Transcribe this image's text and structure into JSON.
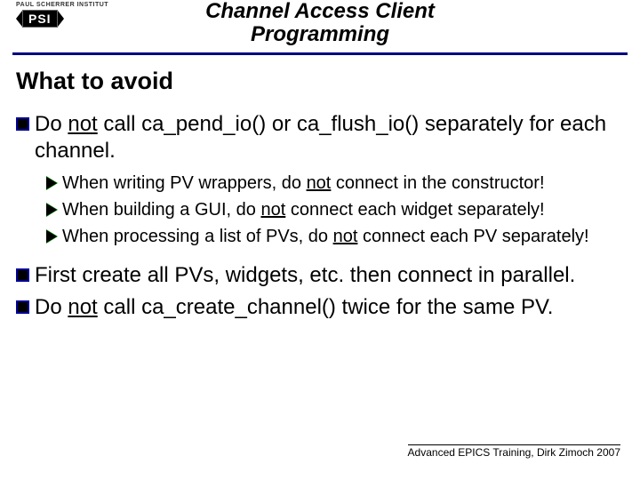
{
  "header": {
    "logo_small_text": "PAUL SCHERRER INSTITUT",
    "logo_text": "PSI",
    "title_line1": "Channel Access Client",
    "title_line2": "Programming"
  },
  "section_title": "What to avoid",
  "bullets": {
    "b1_pre": "Do ",
    "b1_u": "not",
    "b1_post": " call ca_pend_io() or ca_flush_io() separately for each channel.",
    "s1_pre": "When writing PV wrappers, do ",
    "s1_u": "not",
    "s1_post": " connect in the constructor!",
    "s2_pre": "When building a GUI, do ",
    "s2_u": "not",
    "s2_post": " connect each widget separately!",
    "s3_pre": "When processing a list of PVs, do ",
    "s3_u": "not",
    "s3_post": " connect each PV separately!",
    "b2": "First create all PVs, widgets, etc. then connect in parallel.",
    "b3_pre": "Do ",
    "b3_u": "not",
    "b3_post": " call ca_create_channel() twice for the same PV."
  },
  "footer": "Advanced EPICS Training, Dirk Zimoch 2007",
  "colors": {
    "divider": "#000080",
    "triangle_fill": "#000000",
    "triangle_border": "#008000",
    "square_fill": "#000000",
    "square_border": "#000099"
  }
}
